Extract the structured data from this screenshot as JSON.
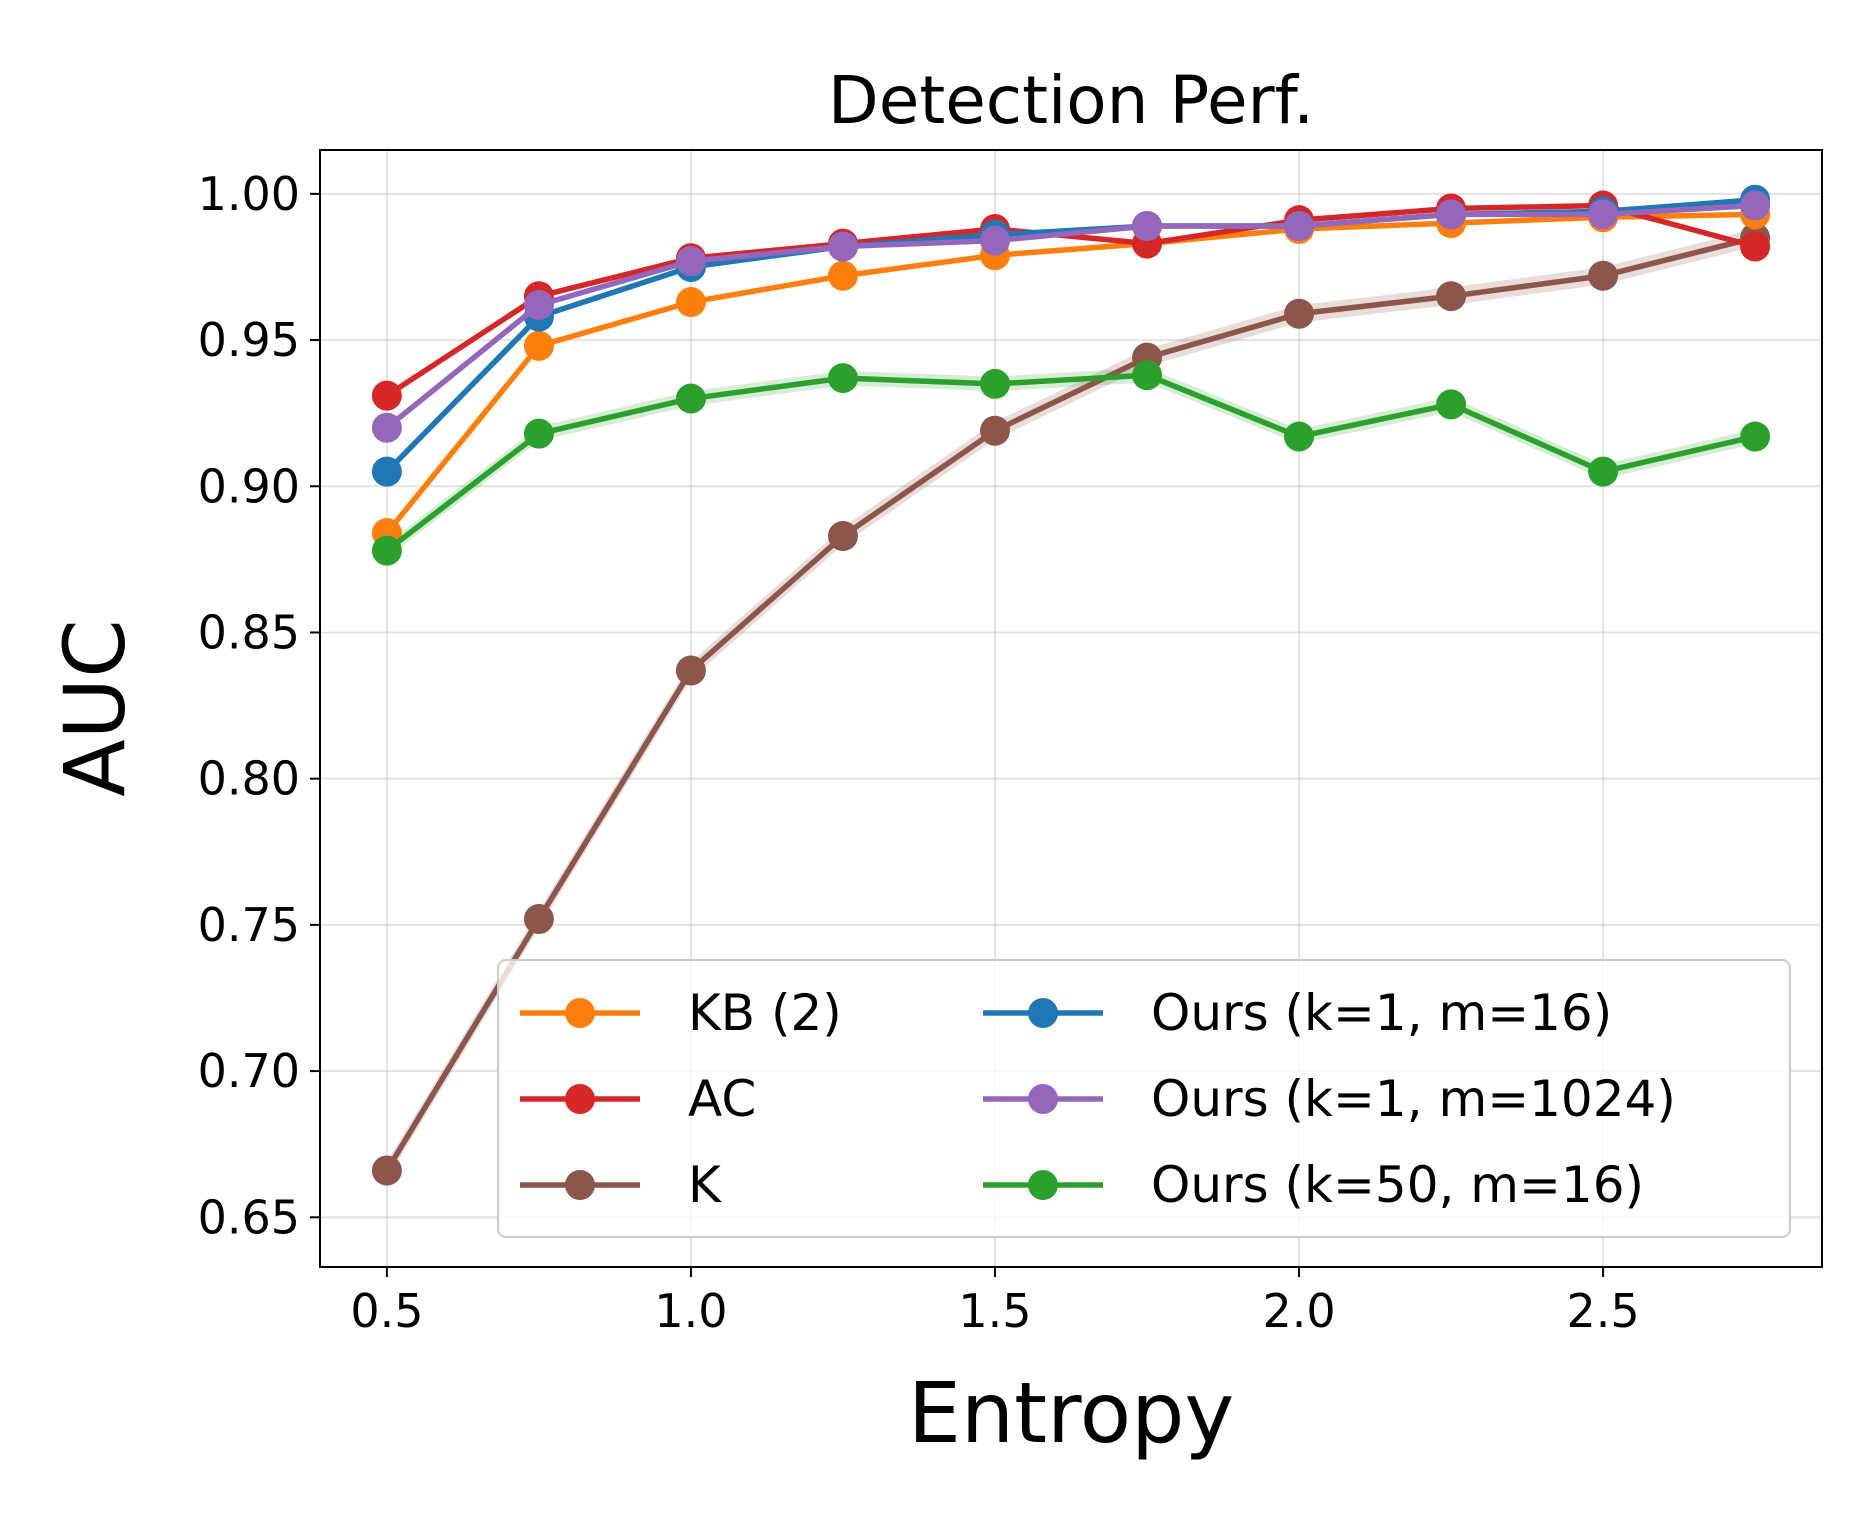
{
  "chart_data": {
    "type": "line",
    "title": "Detection Perf.",
    "xlabel": "Entropy",
    "ylabel": "AUC",
    "xlim": [
      0.39,
      2.86
    ],
    "ylim": [
      0.633,
      1.015
    ],
    "xticks": [
      0.5,
      1.0,
      1.5,
      2.0,
      2.5
    ],
    "xtick_labels": [
      "0.5",
      "1.0",
      "1.5",
      "2.0",
      "2.5"
    ],
    "yticks": [
      0.65,
      0.7,
      0.75,
      0.8,
      0.85,
      0.9,
      0.95,
      1.0
    ],
    "ytick_labels": [
      "0.65",
      "0.70",
      "0.75",
      "0.80",
      "0.85",
      "0.90",
      "0.95",
      "1.00"
    ],
    "grid": true,
    "legend_position": "lower-right",
    "x": [
      0.5,
      0.75,
      1.0,
      1.25,
      1.5,
      1.75,
      2.0,
      2.25,
      2.5,
      2.75
    ],
    "series": [
      {
        "name": "KB (2)",
        "color": "#ff7f0e",
        "values": [
          0.884,
          0.948,
          0.963,
          0.972,
          0.979,
          0.983,
          0.988,
          0.99,
          0.992,
          0.993
        ]
      },
      {
        "name": "AC",
        "color": "#d62728",
        "values": [
          0.931,
          0.965,
          0.978,
          0.983,
          0.988,
          0.983,
          0.991,
          0.995,
          0.996,
          0.982
        ]
      },
      {
        "name": "K",
        "color": "#8c564b",
        "band": 0.003,
        "values": [
          0.666,
          0.752,
          0.837,
          0.883,
          0.919,
          0.944,
          0.959,
          0.965,
          0.972,
          0.985
        ]
      },
      {
        "name": "Ours (k=1, m=16)",
        "color": "#1f77b4",
        "values": [
          0.905,
          0.958,
          0.975,
          0.982,
          0.986,
          0.989,
          0.989,
          0.993,
          0.994,
          0.998
        ]
      },
      {
        "name": "Ours (k=1, m=1024)",
        "color": "#9467bd",
        "values": [
          0.92,
          0.962,
          0.977,
          0.982,
          0.984,
          0.989,
          0.989,
          0.993,
          0.993,
          0.996
        ]
      },
      {
        "name": "Ours (k=50, m=16)",
        "color": "#2ca02c",
        "band": 0.0025,
        "values": [
          0.878,
          0.918,
          0.93,
          0.937,
          0.935,
          0.938,
          0.917,
          0.928,
          0.905,
          0.917
        ]
      }
    ],
    "draw_order": [
      2,
      0,
      1,
      3,
      4,
      5
    ],
    "legend_order": [
      0,
      1,
      2,
      3,
      4,
      5
    ]
  }
}
